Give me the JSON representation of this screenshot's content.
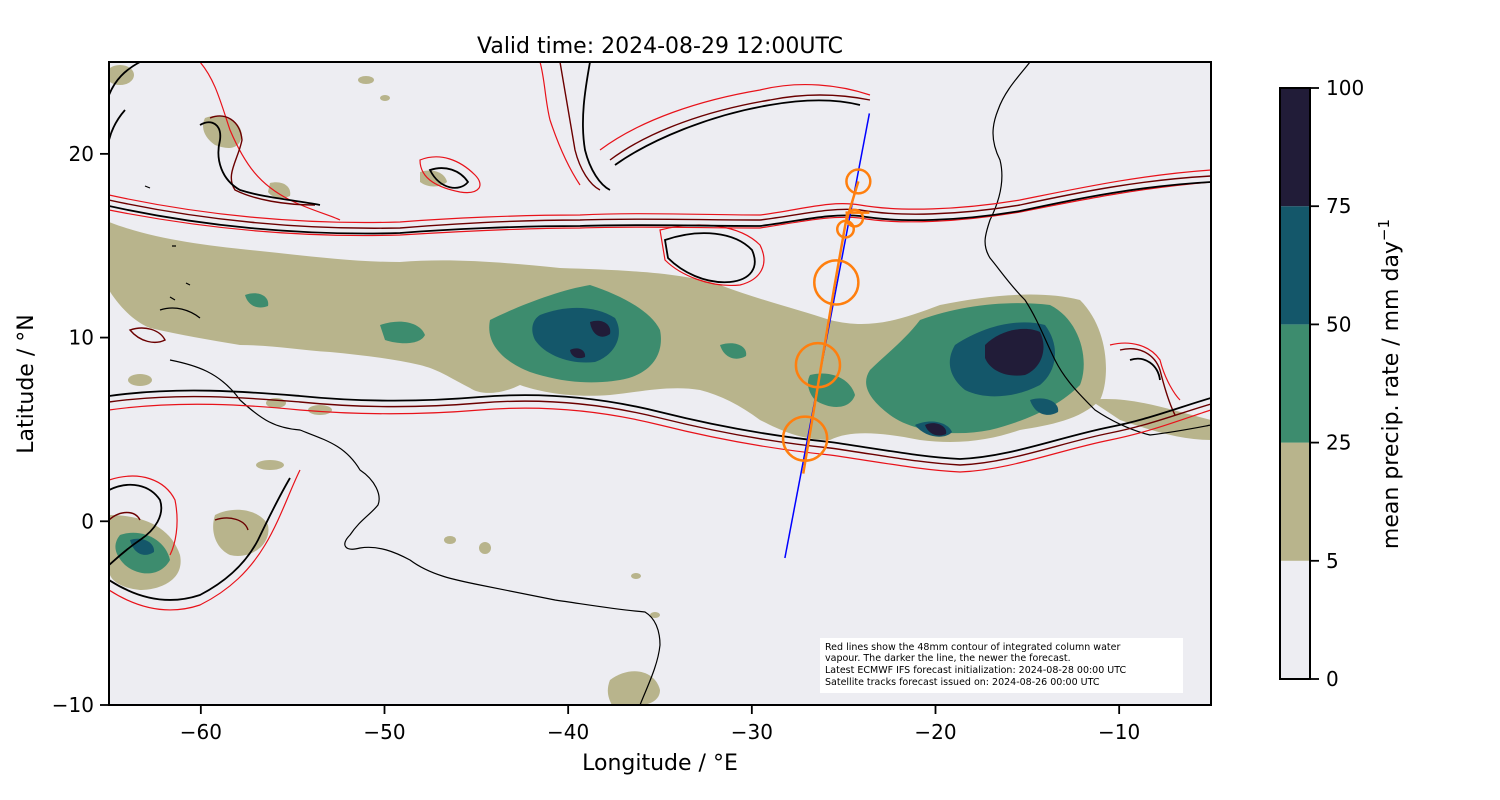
{
  "title": "Valid time: 2024-08-29 12:00UTC",
  "x_axis": {
    "label": "Longitude / °E",
    "range": [
      -65,
      -5
    ],
    "ticks": [
      -60,
      -50,
      -40,
      -30,
      -20,
      -10
    ],
    "tick_labels": [
      "−60",
      "−50",
      "−40",
      "−30",
      "−20",
      "−10"
    ]
  },
  "y_axis": {
    "label": "Latitude / °N",
    "range": [
      -10,
      25
    ],
    "ticks": [
      -10,
      0,
      10,
      20
    ],
    "tick_labels": [
      "−10",
      "0",
      "10",
      "20"
    ]
  },
  "colorbar": {
    "label_main": "mean precip. rate / mm day",
    "label_sup": "−1",
    "levels": [
      0,
      5,
      25,
      50,
      75,
      100
    ],
    "tick_labels": [
      "0",
      "5",
      "25",
      "50",
      "75",
      "100"
    ],
    "colors": [
      "#ededf2",
      "#b8b48c",
      "#3d8c6e",
      "#14576a",
      "#211c38"
    ]
  },
  "colors": {
    "ocean": "#ededf2",
    "precip_light": "#b8b48c",
    "precip_medium": "#3d8c6e",
    "precip_heavy": "#14576a",
    "precip_extreme": "#211c38",
    "iwv_contour_old": "#e8121a",
    "iwv_contour_mid": "#6b0000",
    "iwv_contour_new": "#000000",
    "satellite_track": "#0000ff",
    "flight_track": "#ff7f0e"
  },
  "note": {
    "line1": "Red lines show the 48mm contour of integrated column water",
    "line2": "vapour. The darker the line, the newer the forecast.",
    "line3": "Latest ECMWF IFS forecast initialization: 2024-08-28 00:00 UTC",
    "line4": "Satellite tracks forecast issued on: 2024-08-26 00:00 UTC"
  },
  "satellite_track": [
    [
      -28.2,
      -2.0
    ],
    [
      -23.6,
      22.2
    ]
  ],
  "flight_track": {
    "line": [
      [
        -27.2,
        2.6
      ],
      [
        -25.5,
        12.8
      ],
      [
        -24.9,
        16.2
      ],
      [
        -24.2,
        18.5
      ]
    ],
    "circles": [
      {
        "lon": -27.1,
        "lat": 4.5,
        "r_deg": 1.2
      },
      {
        "lon": -26.4,
        "lat": 8.5,
        "r_deg": 1.2
      },
      {
        "lon": -25.4,
        "lat": 13.0,
        "r_deg": 1.2
      },
      {
        "lon": -24.9,
        "lat": 15.9,
        "r_deg": 0.45
      },
      {
        "lon": -24.4,
        "lat": 16.5,
        "r_deg": 0.45
      },
      {
        "lon": -24.2,
        "lat": 18.5,
        "r_deg": 0.65
      }
    ]
  }
}
